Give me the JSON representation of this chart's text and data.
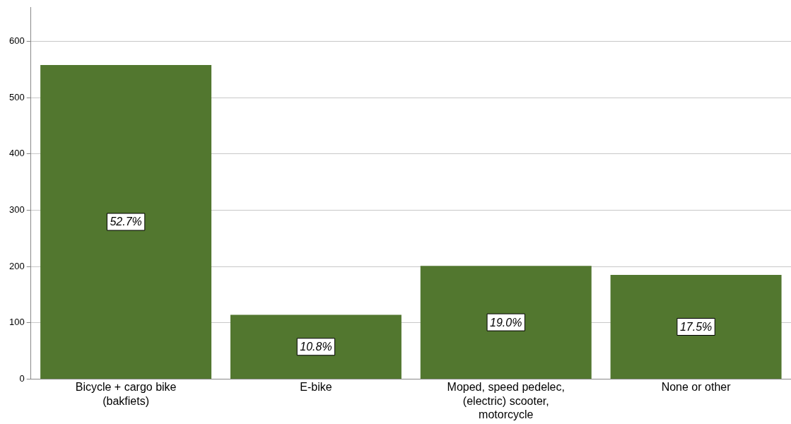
{
  "chart_data": {
    "type": "bar",
    "categories": [
      "Bicycle + cargo bike (bakfiets)",
      "E-bike",
      "Moped, speed pedelec, (electric) scooter, motorcycle",
      "None or other"
    ],
    "values": [
      558,
      114,
      201,
      185
    ],
    "color": "#52772f",
    "annotations": [
      "52.7%",
      "10.8%",
      "19.0%",
      "17.5%"
    ],
    "ylim": [
      0,
      660
    ],
    "yticks": [
      0,
      100,
      200,
      300,
      400,
      500,
      600
    ],
    "grid": "y",
    "legend": false
  }
}
